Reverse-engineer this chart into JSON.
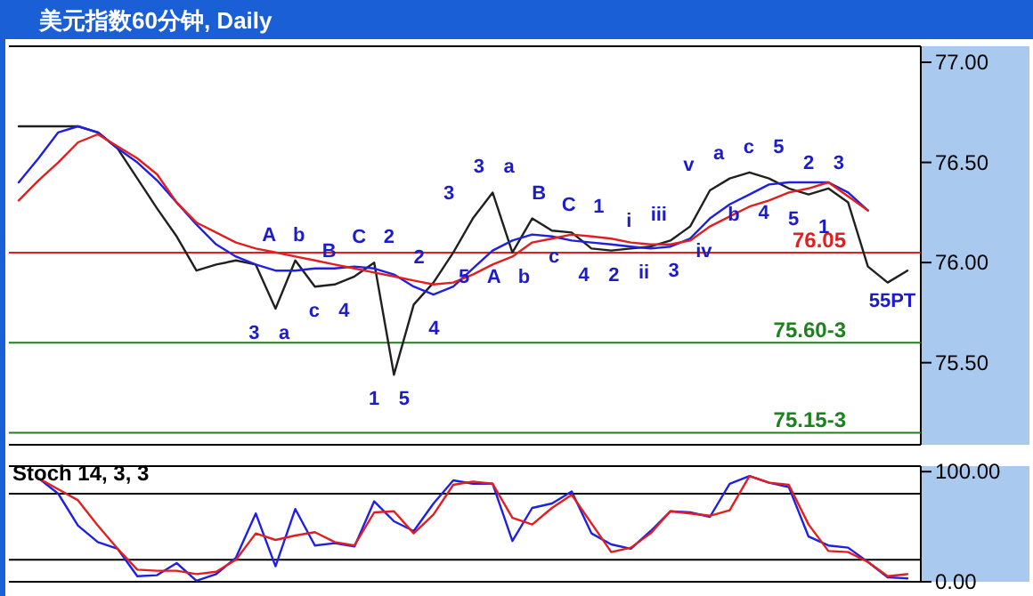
{
  "chart_data": [
    {
      "type": "line",
      "title": "美元指数60分钟, Daily",
      "ylim": [
        75.09,
        77.08
      ],
      "tick_labels": "y",
      "marker": "none",
      "categories": [
        null,
        null,
        null,
        null,
        null,
        null,
        null,
        null,
        null,
        null,
        null,
        null,
        null,
        null,
        null,
        null,
        null,
        null,
        null,
        null,
        null,
        null,
        null,
        null,
        null,
        null,
        null,
        null,
        null,
        null,
        null,
        null,
        null,
        null,
        null,
        null,
        null,
        null,
        null,
        null,
        null,
        null,
        null,
        null,
        null,
        null
      ],
      "yticks": [
        {
          "value": 77.0,
          "label": "77.00"
        },
        {
          "value": 76.5,
          "label": "76.50"
        },
        {
          "value": 76.0,
          "label": "76.00"
        },
        {
          "value": 75.5,
          "label": "75.50"
        }
      ],
      "series": [
        {
          "color": "#202020",
          "values": [
            76.68,
            76.68,
            76.68,
            76.68,
            76.65,
            76.57,
            76.42,
            76.27,
            76.13,
            75.96,
            75.99,
            76.01,
            75.99,
            75.77,
            76.01,
            75.88,
            75.89,
            75.93,
            76.0,
            75.44,
            75.79,
            75.9,
            76.05,
            76.22,
            76.35,
            76.05,
            76.22,
            76.16,
            76.15,
            76.07,
            76.06,
            76.07,
            76.08,
            76.11,
            76.18,
            76.36,
            76.42,
            76.45,
            76.42,
            76.37,
            76.34,
            76.37,
            76.3,
            75.98,
            75.9,
            75.96
          ]
        },
        {
          "color": "#2020e0",
          "values": [
            76.4,
            76.52,
            76.65,
            76.68,
            76.65,
            76.57,
            76.5,
            76.41,
            76.3,
            76.19,
            76.09,
            76.03,
            75.99,
            75.96,
            75.96,
            75.97,
            75.97,
            75.98,
            75.97,
            75.94,
            75.88,
            75.84,
            75.88,
            75.97,
            76.06,
            76.11,
            76.14,
            76.13,
            76.11,
            76.1,
            76.09,
            76.08,
            76.07,
            76.08,
            76.12,
            76.22,
            76.29,
            76.34,
            76.39,
            76.4,
            76.4,
            76.4,
            76.35,
            76.26,
            null,
            null
          ]
        },
        {
          "color": "#e02020",
          "values": [
            76.31,
            76.41,
            76.5,
            76.6,
            76.64,
            76.58,
            76.52,
            76.44,
            76.3,
            76.2,
            76.15,
            76.1,
            76.07,
            76.05,
            76.03,
            76.01,
            75.99,
            75.97,
            75.95,
            75.93,
            75.91,
            75.89,
            75.9,
            75.94,
            75.99,
            76.03,
            76.1,
            76.12,
            76.14,
            76.13,
            76.12,
            76.1,
            76.09,
            76.09,
            76.11,
            76.18,
            76.23,
            76.28,
            76.31,
            76.35,
            76.37,
            76.4,
            76.33,
            76.26,
            null,
            null
          ]
        }
      ],
      "ref_lines": [
        {
          "axis": "y",
          "value": 76.05,
          "label": "76.05",
          "color": "#e02020"
        },
        {
          "axis": "y",
          "value": 75.6,
          "label": "75.60-3",
          "color": "#208020"
        },
        {
          "axis": "y",
          "value": 75.15,
          "label": "75.15-3",
          "color": "#208020"
        }
      ],
      "annotations": [
        "3",
        "A",
        "a",
        "b",
        "c",
        "B",
        "4",
        "C",
        "1",
        "2",
        "5",
        "2",
        "4",
        "3",
        "5",
        "3",
        "A",
        "a",
        "b",
        "B",
        "c",
        "C",
        "4",
        "1",
        "2",
        "i",
        "ii",
        "iii",
        "3",
        "v",
        "iv",
        "a",
        "b",
        "c",
        "4",
        "5",
        "5",
        "2",
        "1",
        "3",
        "55PT"
      ]
    },
    {
      "type": "line",
      "title": "Stoch 14, 3, 3",
      "ylim": [
        0,
        105
      ],
      "tick_labels": "y",
      "marker": "none",
      "categories": [
        null,
        null,
        null,
        null,
        null,
        null,
        null,
        null,
        null,
        null,
        null,
        null,
        null,
        null,
        null,
        null,
        null,
        null,
        null,
        null,
        null,
        null,
        null,
        null,
        null,
        null,
        null,
        null,
        null,
        null,
        null,
        null,
        null,
        null,
        null,
        null,
        null,
        null,
        null,
        null,
        null,
        null,
        null,
        null,
        null
      ],
      "yticks": [
        {
          "value": 100,
          "label": "100.00"
        },
        {
          "value": 0,
          "label": "0.00"
        }
      ],
      "series": [
        {
          "color": "#2020e0",
          "values": [
            94,
            80,
            51,
            36,
            30,
            5,
            6,
            17,
            1,
            7,
            22,
            62,
            14,
            66,
            33,
            35,
            32,
            73,
            55,
            46,
            71,
            92,
            89,
            89,
            37,
            67,
            71,
            82,
            44,
            34,
            30,
            46,
            64,
            63,
            59,
            89,
            96,
            90,
            86,
            41,
            33,
            31,
            18,
            4,
            3
          ]
        },
        {
          "color": "#e02020",
          "values": [
            94,
            84,
            74,
            51,
            30,
            11,
            10,
            10,
            7,
            9,
            20,
            44,
            38,
            42,
            45,
            36,
            33,
            63,
            64,
            44,
            61,
            88,
            91,
            89,
            58,
            52,
            67,
            79,
            53,
            27,
            31,
            44,
            64,
            62,
            60,
            65,
            96,
            90,
            88,
            52,
            28,
            27,
            18,
            5,
            7
          ]
        }
      ],
      "ref_lines": [
        {
          "axis": "y",
          "value": 80,
          "color": "#000000"
        },
        {
          "axis": "y",
          "value": 20,
          "color": "#000000"
        }
      ]
    }
  ]
}
